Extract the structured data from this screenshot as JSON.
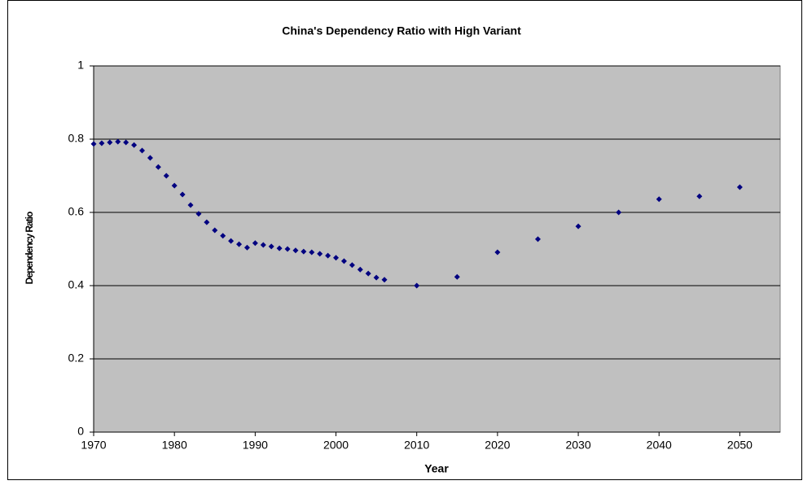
{
  "chart_data": {
    "type": "scatter",
    "title": "China's Dependency Ratio with High Variant",
    "x_label": "Year",
    "y_label": "Dependency Ratio",
    "x": [
      1970,
      1971,
      1972,
      1973,
      1974,
      1975,
      1976,
      1977,
      1978,
      1979,
      1980,
      1981,
      1982,
      1983,
      1984,
      1985,
      1986,
      1987,
      1988,
      1989,
      1990,
      1991,
      1992,
      1993,
      1994,
      1995,
      1996,
      1997,
      1998,
      1999,
      2000,
      2001,
      2002,
      2003,
      2004,
      2005,
      2006,
      2010,
      2015,
      2020,
      2025,
      2030,
      2035,
      2040,
      2045,
      2050
    ],
    "series": [
      {
        "name": "Dependency Ratio",
        "color": "#000080",
        "values": [
          0.787,
          0.789,
          0.791,
          0.793,
          0.791,
          0.784,
          0.769,
          0.749,
          0.724,
          0.7,
          0.673,
          0.649,
          0.62,
          0.596,
          0.573,
          0.551,
          0.536,
          0.522,
          0.513,
          0.504,
          0.516,
          0.511,
          0.507,
          0.502,
          0.5,
          0.496,
          0.493,
          0.491,
          0.487,
          0.482,
          0.476,
          0.467,
          0.456,
          0.444,
          0.433,
          0.422,
          0.416,
          0.4,
          0.424,
          0.491,
          0.527,
          0.562,
          0.6,
          0.636,
          0.644,
          0.669
        ]
      }
    ],
    "xlim": [
      1970,
      2055
    ],
    "xticks": [
      1970,
      1980,
      1990,
      2000,
      2010,
      2020,
      2030,
      2040,
      2050
    ],
    "ylim": [
      0,
      1
    ],
    "yticks": [
      0,
      0.2,
      0.4,
      0.6,
      0.8,
      1
    ],
    "grid": true
  }
}
